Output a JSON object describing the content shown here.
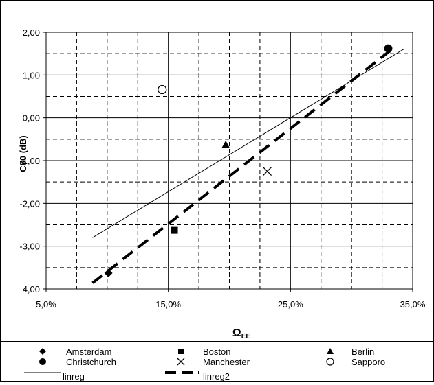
{
  "chart_data": {
    "type": "scatter",
    "title": "",
    "xlabel_main": "Ω",
    "xlabel_sub": "EE",
    "ylabel": "C80 (dB)",
    "xlim": [
      0.05,
      0.35
    ],
    "ylim": [
      -4,
      2
    ],
    "x_ticks": [
      0.05,
      0.15,
      0.25,
      0.35
    ],
    "x_tick_labels": [
      "5,0%",
      "15,0%",
      "25,0%",
      "35,0%"
    ],
    "y_ticks": [
      -4,
      -3,
      -2,
      -1,
      0,
      1,
      2
    ],
    "y_tick_labels": [
      "-4,00",
      "-3,00",
      "-2,00",
      "-1,00",
      "0,00",
      "1,00",
      "2,00"
    ],
    "grid": true,
    "legend_position": "bottom",
    "series": [
      {
        "name": "Amsterdam",
        "marker": "diamond",
        "points": [
          [
            0.101,
            -3.63
          ]
        ]
      },
      {
        "name": "Boston",
        "marker": "square",
        "points": [
          [
            0.155,
            -2.63
          ]
        ]
      },
      {
        "name": "Berlin",
        "marker": "triangle",
        "points": [
          [
            0.197,
            -0.63
          ]
        ]
      },
      {
        "name": "Christchurch",
        "marker": "circle",
        "points": [
          [
            0.33,
            1.62
          ]
        ]
      },
      {
        "name": "Manchester",
        "marker": "x",
        "points": [
          [
            0.231,
            -1.25
          ]
        ]
      },
      {
        "name": "Sapporo",
        "marker": "open-circle",
        "points": [
          [
            0.145,
            0.66
          ]
        ]
      }
    ],
    "lines": [
      {
        "name": "linreg",
        "style": "thin",
        "from": [
          0.088,
          -2.8
        ],
        "to": [
          0.343,
          1.61
        ]
      },
      {
        "name": "linreg2",
        "style": "dashed-thick",
        "from": [
          0.088,
          -3.86
        ],
        "to": [
          0.333,
          1.6
        ]
      }
    ]
  },
  "legend": {
    "items": [
      "Amsterdam",
      "Boston",
      "Berlin",
      "Christchurch",
      "Manchester",
      "Sapporo",
      "linreg",
      "linreg2"
    ]
  }
}
